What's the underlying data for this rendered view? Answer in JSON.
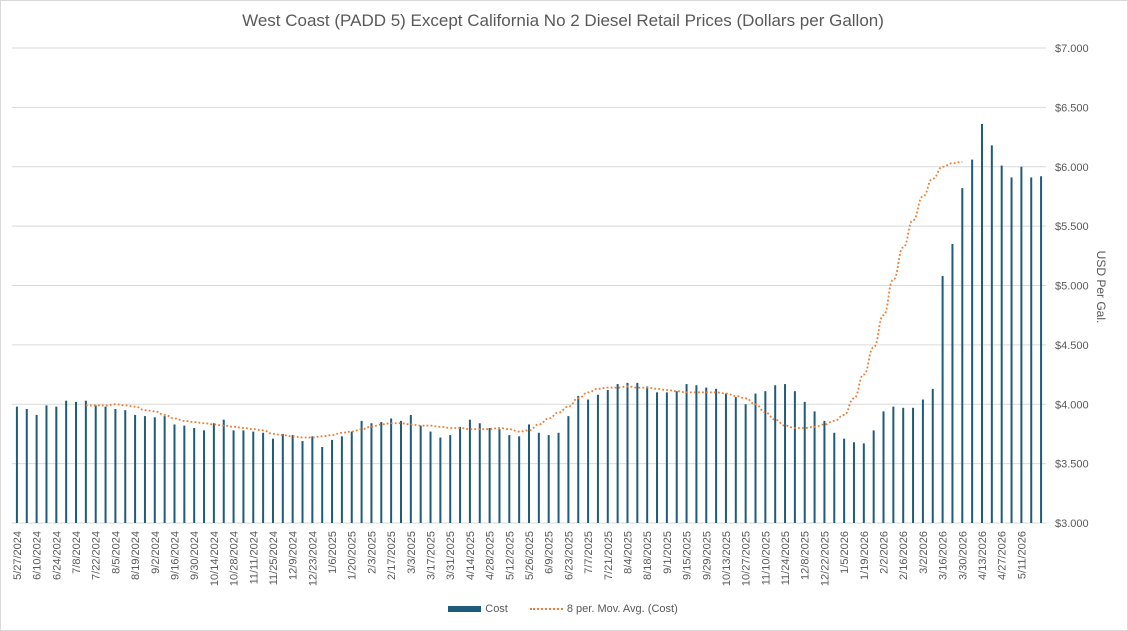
{
  "chart_data": {
    "type": "bar",
    "title": "West Coast (PADD 5) Except California No 2 Diesel Retail Prices (Dollars per Gallon)",
    "ylabel": "USD Per Gal.",
    "xlabel": "",
    "ylim": [
      3.0,
      7.0
    ],
    "y_axis_position": "right",
    "y_ticks": [
      "$3.000",
      "$3.500",
      "$4.000",
      "$4.500",
      "$5.000",
      "$5.500",
      "$6.000",
      "$6.500",
      "$7.000"
    ],
    "y_tick_values": [
      3.0,
      3.5,
      4.0,
      4.5,
      5.0,
      5.5,
      6.0,
      6.5,
      7.0
    ],
    "grid": "horizontal",
    "legend_position": "bottom",
    "x_start_date": "5/27/2024",
    "x_step_days": 7,
    "x_tick_labels": [
      "5/27/2024",
      "6/10/2024",
      "6/24/2024",
      "7/8/2024",
      "7/22/2024",
      "8/5/2024",
      "8/19/2024",
      "9/2/2024",
      "9/16/2024",
      "9/30/2024",
      "10/14/2024",
      "10/28/2024",
      "11/11/2024",
      "11/25/2024",
      "12/9/2024",
      "12/23/2024",
      "1/6/2025",
      "1/20/2025",
      "2/3/2025",
      "2/17/2025",
      "3/3/2025",
      "3/17/2025",
      "3/31/2025",
      "4/14/2025",
      "4/28/2025",
      "5/12/2025",
      "5/26/2025",
      "6/9/2025",
      "6/23/2025",
      "7/7/2025",
      "7/21/2025",
      "8/4/2025",
      "8/18/2025",
      "9/1/2025",
      "9/15/2025",
      "9/29/2025",
      "10/13/2025",
      "10/27/2025",
      "11/10/2025",
      "11/24/2025",
      "12/8/2025",
      "12/22/2025",
      "1/5/2026",
      "1/19/2026",
      "2/2/2026",
      "2/16/2026",
      "3/2/2026",
      "3/16/2026",
      "3/30/2026",
      "4/13/2026",
      "4/27/2026",
      "5/11/2026"
    ],
    "series": [
      {
        "name": "Cost",
        "kind": "bar",
        "color": "#1f5b7a",
        "values": [
          3.98,
          3.96,
          3.91,
          3.99,
          3.98,
          4.03,
          4.02,
          4.03,
          3.99,
          3.98,
          3.96,
          3.95,
          3.91,
          3.9,
          3.89,
          3.9,
          3.83,
          3.82,
          3.8,
          3.78,
          3.84,
          3.87,
          3.78,
          3.78,
          3.77,
          3.76,
          3.71,
          3.75,
          3.74,
          3.69,
          3.73,
          3.64,
          3.7,
          3.73,
          3.77,
          3.86,
          3.84,
          3.85,
          3.88,
          3.86,
          3.91,
          3.82,
          3.77,
          3.72,
          3.74,
          3.81,
          3.87,
          3.84,
          3.8,
          3.79,
          3.74,
          3.73,
          3.83,
          3.76,
          3.74,
          3.76,
          3.9,
          4.07,
          4.04,
          4.08,
          4.12,
          4.17,
          4.18,
          4.18,
          4.15,
          4.1,
          4.1,
          4.11,
          4.17,
          4.16,
          4.14,
          4.13,
          4.09,
          4.06,
          4.0,
          4.09,
          4.11,
          4.16,
          4.17,
          4.11,
          4.02,
          3.94,
          3.86,
          3.76,
          3.71,
          3.68,
          3.67,
          3.78,
          3.94,
          3.98,
          3.97,
          3.97,
          4.04,
          4.13,
          5.08,
          5.35,
          5.82,
          6.06,
          6.36,
          6.18,
          6.01,
          5.91,
          6.0,
          5.91,
          5.92
        ]
      },
      {
        "name": "8 per. Mov. Avg. (Cost)",
        "kind": "line",
        "color": "#ed7d31",
        "x_start_index": 7,
        "values": [
          3.99,
          3.99,
          3.99,
          4.0,
          3.99,
          3.98,
          3.95,
          3.94,
          3.91,
          3.88,
          3.86,
          3.85,
          3.84,
          3.83,
          3.82,
          3.81,
          3.8,
          3.79,
          3.78,
          3.75,
          3.74,
          3.73,
          3.72,
          3.72,
          3.73,
          3.74,
          3.76,
          3.77,
          3.79,
          3.81,
          3.83,
          3.84,
          3.84,
          3.83,
          3.82,
          3.82,
          3.81,
          3.8,
          3.8,
          3.79,
          3.79,
          3.79,
          3.8,
          3.79,
          3.77,
          3.78,
          3.83,
          3.88,
          3.93,
          3.98,
          4.05,
          4.1,
          4.13,
          4.14,
          4.14,
          4.15,
          4.14,
          4.14,
          4.13,
          4.12,
          4.11,
          4.1,
          4.1,
          4.1,
          4.1,
          4.09,
          4.07,
          4.05,
          4.0,
          3.93,
          3.87,
          3.82,
          3.8,
          3.8,
          3.81,
          3.83,
          3.86,
          3.91,
          4.05,
          4.25,
          4.48,
          4.75,
          5.05,
          5.32,
          5.55,
          5.75,
          5.9,
          6.0,
          6.03,
          6.04
        ]
      }
    ]
  }
}
